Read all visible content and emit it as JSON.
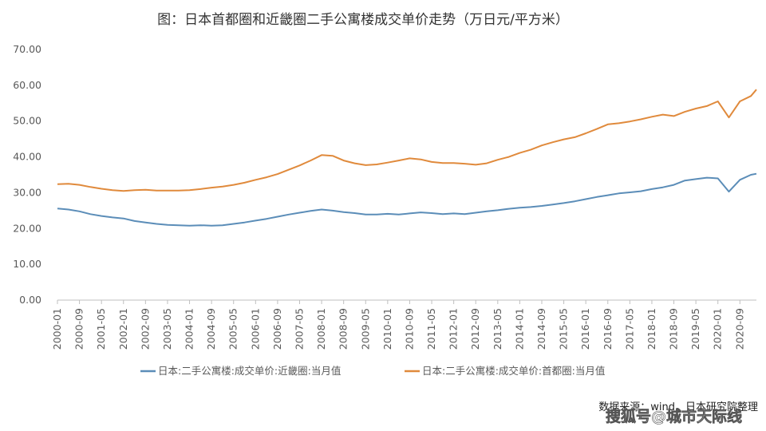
{
  "chart_data": {
    "type": "line",
    "title": "图：日本首都圈和近畿圈二手公寓楼成交单价走势（万日元/平方米）",
    "ylim": [
      0,
      70
    ],
    "yticks": [
      "0.00",
      "10.00",
      "20.00",
      "30.00",
      "40.00",
      "50.00",
      "60.00",
      "70.00"
    ],
    "categories": [
      "2000-01",
      "2000-09",
      "2001-05",
      "2002-01",
      "2002-09",
      "2003-05",
      "2004-01",
      "2004-09",
      "2005-05",
      "2006-01",
      "2006-09",
      "2007-05",
      "2008-01",
      "2008-09",
      "2009-05",
      "2010-01",
      "2010-09",
      "2011-05",
      "2012-01",
      "2012-09",
      "2013-05",
      "2014-01",
      "2014-09",
      "2015-05",
      "2016-01",
      "2016-09",
      "2017-05",
      "2018-01",
      "2018-09",
      "2019-05",
      "2020-01",
      "2020-09"
    ],
    "grid": false,
    "legend_position": "bottom",
    "series": [
      {
        "name": "日本:二手公寓楼:成交单价:近畿圈:当月值",
        "color": "#5b8db8",
        "points": [
          [
            "2000-01",
            25.6
          ],
          [
            "2000-05",
            25.3
          ],
          [
            "2000-09",
            24.8
          ],
          [
            "2001-01",
            24.0
          ],
          [
            "2001-05",
            23.5
          ],
          [
            "2001-09",
            23.1
          ],
          [
            "2002-01",
            22.8
          ],
          [
            "2002-05",
            22.1
          ],
          [
            "2002-09",
            21.7
          ],
          [
            "2003-01",
            21.3
          ],
          [
            "2003-05",
            21.0
          ],
          [
            "2003-09",
            20.9
          ],
          [
            "2004-01",
            20.8
          ],
          [
            "2004-05",
            20.9
          ],
          [
            "2004-09",
            20.8
          ],
          [
            "2005-01",
            20.9
          ],
          [
            "2005-05",
            21.3
          ],
          [
            "2005-09",
            21.7
          ],
          [
            "2006-01",
            22.2
          ],
          [
            "2006-05",
            22.7
          ],
          [
            "2006-09",
            23.3
          ],
          [
            "2007-01",
            23.9
          ],
          [
            "2007-05",
            24.4
          ],
          [
            "2007-09",
            24.9
          ],
          [
            "2008-01",
            25.3
          ],
          [
            "2008-05",
            25.0
          ],
          [
            "2008-09",
            24.6
          ],
          [
            "2009-01",
            24.3
          ],
          [
            "2009-05",
            23.9
          ],
          [
            "2009-09",
            23.9
          ],
          [
            "2010-01",
            24.1
          ],
          [
            "2010-05",
            23.9
          ],
          [
            "2010-09",
            24.2
          ],
          [
            "2011-01",
            24.5
          ],
          [
            "2011-05",
            24.3
          ],
          [
            "2011-09",
            24.0
          ],
          [
            "2012-01",
            24.2
          ],
          [
            "2012-05",
            24.0
          ],
          [
            "2012-09",
            24.4
          ],
          [
            "2013-01",
            24.8
          ],
          [
            "2013-05",
            25.1
          ],
          [
            "2013-09",
            25.5
          ],
          [
            "2014-01",
            25.8
          ],
          [
            "2014-05",
            26.0
          ],
          [
            "2014-09",
            26.3
          ],
          [
            "2015-01",
            26.7
          ],
          [
            "2015-05",
            27.1
          ],
          [
            "2015-09",
            27.6
          ],
          [
            "2016-01",
            28.2
          ],
          [
            "2016-05",
            28.8
          ],
          [
            "2016-09",
            29.3
          ],
          [
            "2017-01",
            29.8
          ],
          [
            "2017-05",
            30.1
          ],
          [
            "2017-09",
            30.4
          ],
          [
            "2018-01",
            31.0
          ],
          [
            "2018-05",
            31.5
          ],
          [
            "2018-09",
            32.2
          ],
          [
            "2019-01",
            33.4
          ],
          [
            "2019-05",
            33.8
          ],
          [
            "2019-09",
            34.2
          ],
          [
            "2020-01",
            34.0
          ],
          [
            "2020-05",
            30.3
          ],
          [
            "2020-09",
            33.6
          ],
          [
            "2021-01",
            35.0
          ],
          [
            "2021-03",
            35.3
          ]
        ]
      },
      {
        "name": "日本:二手公寓楼:成交单价:首都圈:当月值",
        "color": "#e08a3c",
        "points": [
          [
            "2000-01",
            32.4
          ],
          [
            "2000-05",
            32.5
          ],
          [
            "2000-09",
            32.2
          ],
          [
            "2001-01",
            31.6
          ],
          [
            "2001-05",
            31.1
          ],
          [
            "2001-09",
            30.7
          ],
          [
            "2002-01",
            30.5
          ],
          [
            "2002-05",
            30.7
          ],
          [
            "2002-09",
            30.8
          ],
          [
            "2003-01",
            30.6
          ],
          [
            "2003-05",
            30.6
          ],
          [
            "2003-09",
            30.6
          ],
          [
            "2004-01",
            30.7
          ],
          [
            "2004-05",
            31.0
          ],
          [
            "2004-09",
            31.4
          ],
          [
            "2005-01",
            31.7
          ],
          [
            "2005-05",
            32.2
          ],
          [
            "2005-09",
            32.8
          ],
          [
            "2006-01",
            33.6
          ],
          [
            "2006-05",
            34.3
          ],
          [
            "2006-09",
            35.2
          ],
          [
            "2007-01",
            36.4
          ],
          [
            "2007-05",
            37.6
          ],
          [
            "2007-09",
            39.0
          ],
          [
            "2008-01",
            40.5
          ],
          [
            "2008-05",
            40.3
          ],
          [
            "2008-09",
            39.0
          ],
          [
            "2009-01",
            38.2
          ],
          [
            "2009-05",
            37.7
          ],
          [
            "2009-09",
            37.9
          ],
          [
            "2010-01",
            38.4
          ],
          [
            "2010-05",
            39.0
          ],
          [
            "2010-09",
            39.6
          ],
          [
            "2011-01",
            39.3
          ],
          [
            "2011-05",
            38.6
          ],
          [
            "2011-09",
            38.3
          ],
          [
            "2012-01",
            38.3
          ],
          [
            "2012-05",
            38.1
          ],
          [
            "2012-09",
            37.8
          ],
          [
            "2013-01",
            38.2
          ],
          [
            "2013-05",
            39.2
          ],
          [
            "2013-09",
            40.0
          ],
          [
            "2014-01",
            41.1
          ],
          [
            "2014-05",
            42.0
          ],
          [
            "2014-09",
            43.2
          ],
          [
            "2015-01",
            44.1
          ],
          [
            "2015-05",
            44.9
          ],
          [
            "2015-09",
            45.5
          ],
          [
            "2016-01",
            46.6
          ],
          [
            "2016-05",
            47.8
          ],
          [
            "2016-09",
            49.1
          ],
          [
            "2017-01",
            49.4
          ],
          [
            "2017-05",
            49.9
          ],
          [
            "2017-09",
            50.5
          ],
          [
            "2018-01",
            51.2
          ],
          [
            "2018-05",
            51.8
          ],
          [
            "2018-09",
            51.4
          ],
          [
            "2019-01",
            52.6
          ],
          [
            "2019-05",
            53.5
          ],
          [
            "2019-09",
            54.2
          ],
          [
            "2020-01",
            55.5
          ],
          [
            "2020-05",
            51.0
          ],
          [
            "2020-09",
            55.5
          ],
          [
            "2021-01",
            57.0
          ],
          [
            "2021-03",
            58.8
          ]
        ]
      }
    ]
  },
  "source": "数据来源：wind，日本研究院整理",
  "watermark": "搜狐号@城市天际线"
}
